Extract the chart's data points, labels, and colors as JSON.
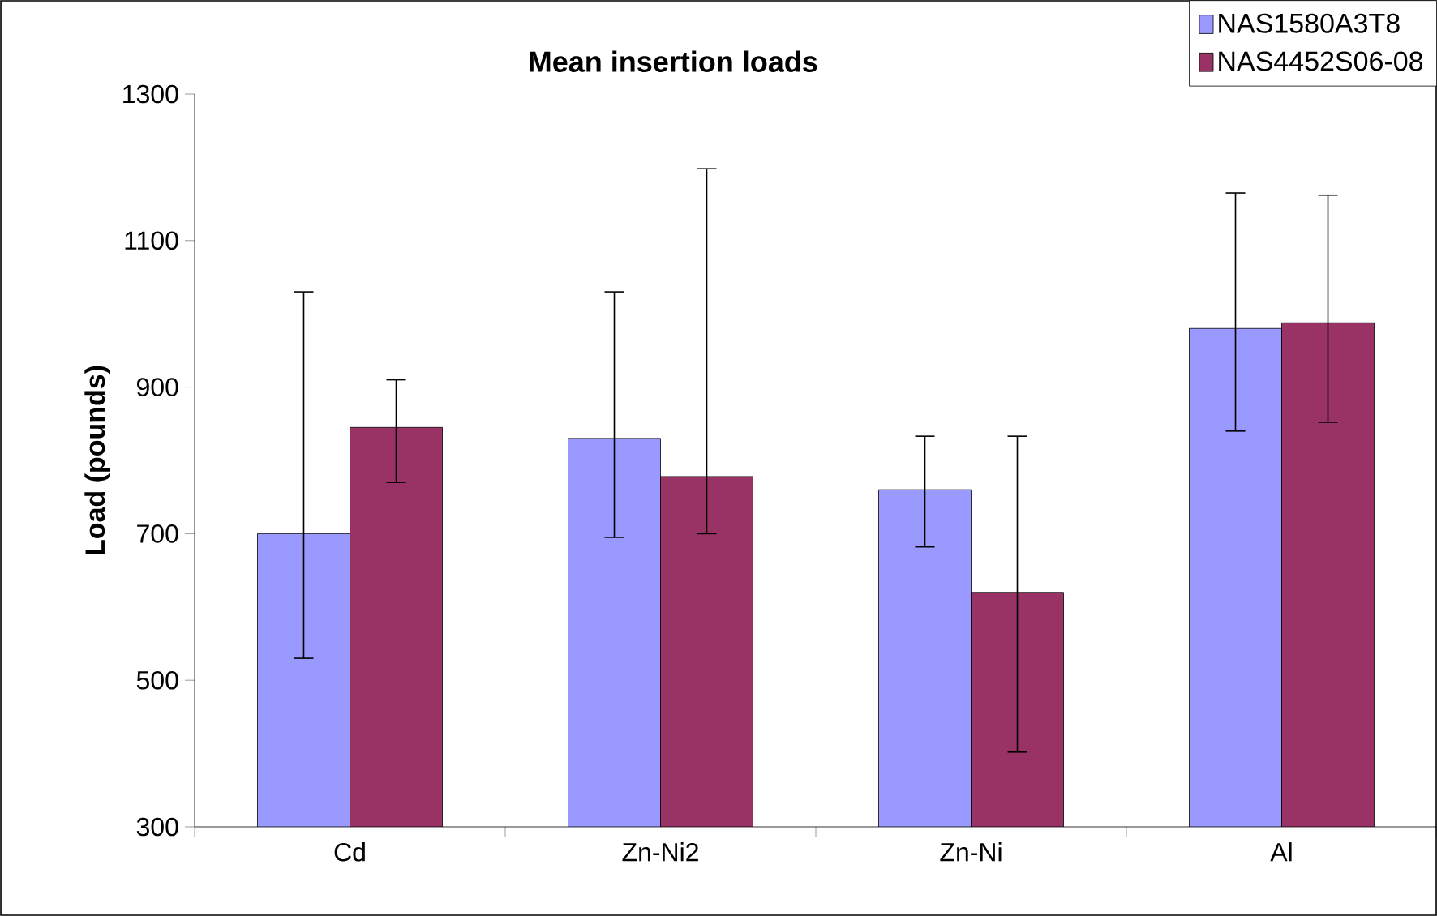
{
  "chart_data": {
    "type": "bar",
    "title": "Mean insertion loads",
    "ylabel": "Load (pounds)",
    "categories": [
      "Cd",
      "Zn-Ni2",
      "Zn-Ni",
      "Al"
    ],
    "series": [
      {
        "name": "NAS1580A3T8",
        "color": "#9999ff",
        "values": [
          700,
          830,
          760,
          980
        ],
        "errors": [
          [
            530,
            1030
          ],
          [
            695,
            1030
          ],
          [
            682,
            833
          ],
          [
            840,
            1165
          ]
        ]
      },
      {
        "name": "NAS4452S06-08",
        "color": "#993366",
        "values": [
          845,
          778,
          620,
          988
        ],
        "errors": [
          [
            770,
            910
          ],
          [
            700,
            1198
          ],
          [
            402,
            833
          ],
          [
            852,
            1162
          ]
        ]
      }
    ],
    "ylim": [
      300,
      1300
    ],
    "yticks": [
      300,
      500,
      700,
      900,
      1100,
      1300
    ],
    "grid": false,
    "legend": "top right"
  }
}
